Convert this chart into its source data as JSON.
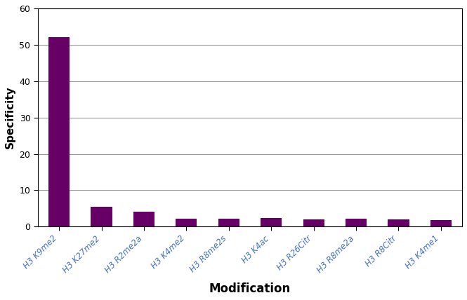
{
  "categories": [
    "H3 K9me2",
    "H3 K27me2",
    "H3 R2me2a",
    "H3 K4me2",
    "H3 R8me2s",
    "H3 K4ac",
    "H3 R26Citr",
    "H3 R8me2a",
    "H3 R8Citr",
    "H3 K4me1"
  ],
  "values": [
    52,
    5.4,
    4.1,
    2.2,
    2.2,
    2.3,
    2.0,
    2.1,
    2.0,
    1.9
  ],
  "bar_color": "#660066",
  "ylabel": "Specificity",
  "xlabel": "Modification",
  "ylim": [
    0,
    60
  ],
  "yticks": [
    0,
    10,
    20,
    30,
    40,
    50,
    60
  ],
  "background_color": "#ffffff",
  "grid_color": "#999999",
  "label_color": "#4472c4",
  "label_fontsize": 8.5,
  "ylabel_fontsize": 11,
  "xlabel_fontsize": 12,
  "figsize": [
    6.65,
    4.28
  ],
  "dpi": 100,
  "bar_width": 0.5
}
